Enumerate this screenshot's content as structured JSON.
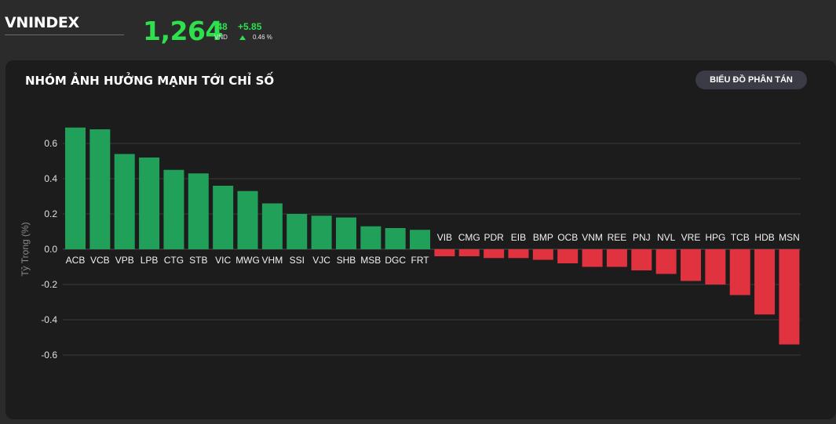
{
  "header": {
    "index_name": "VNINDEX",
    "price_main": "1,264",
    "price_decimal": ".48",
    "currency": "VND",
    "change": "+5.85",
    "change_pct": "0.46 %",
    "up_color": "#2ee04d"
  },
  "panel": {
    "title": "NHÓM ẢNH HƯỞNG MẠNH TỚI CHỈ SỐ",
    "scatter_button_label": "BIỂU ĐỒ PHÂN TÁN"
  },
  "chart_data": {
    "type": "bar",
    "ylabel": "Tỷ Trọng (%)",
    "ylim": [
      -0.65,
      0.75
    ],
    "yticks": [
      -0.6,
      -0.4,
      -0.2,
      0.0,
      0.2,
      0.4,
      0.6
    ],
    "ytick_labels": [
      "-0.6",
      "-0.4",
      "-0.2",
      "0.0",
      "0.2",
      "0.4",
      "0.6"
    ],
    "grid": true,
    "positive_color": "#21a05a",
    "negative_color": "#e0323f",
    "categories": [
      "ACB",
      "VCB",
      "VPB",
      "LPB",
      "CTG",
      "STB",
      "VIC",
      "MWG",
      "VHM",
      "SSI",
      "VJC",
      "SHB",
      "MSB",
      "DGC",
      "FRT",
      "VIB",
      "CMG",
      "PDR",
      "EIB",
      "BMP",
      "OCB",
      "VNM",
      "REE",
      "PNJ",
      "NVL",
      "VRE",
      "HPG",
      "TCB",
      "HDB",
      "MSN"
    ],
    "values": [
      0.69,
      0.68,
      0.54,
      0.52,
      0.45,
      0.43,
      0.36,
      0.33,
      0.26,
      0.2,
      0.19,
      0.18,
      0.13,
      0.12,
      0.11,
      -0.04,
      -0.04,
      -0.05,
      -0.05,
      -0.06,
      -0.08,
      -0.1,
      -0.1,
      -0.12,
      -0.14,
      -0.18,
      -0.2,
      -0.26,
      -0.37,
      -0.54
    ]
  }
}
